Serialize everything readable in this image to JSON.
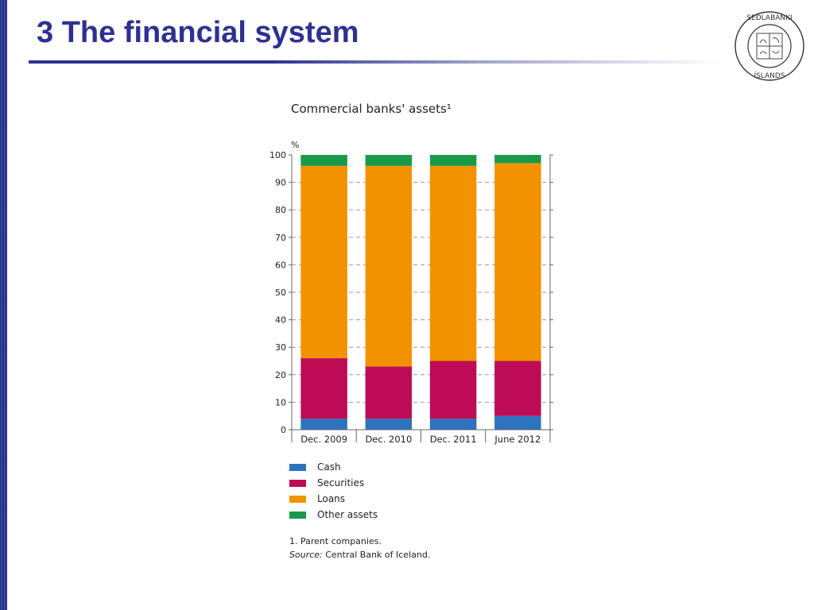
{
  "slide": {
    "title": "3 The financial system",
    "logo": {
      "name": "seal-icon",
      "text": "SEDLABANKI ISLANDS"
    }
  },
  "colors": {
    "title": "#2e3192",
    "cash": "#2d73c0",
    "securities": "#bd0c55",
    "loans": "#f39200",
    "other_assets": "#1a9a48"
  },
  "chart_data": {
    "type": "bar",
    "stacked": true,
    "title": "Commercial banks' assets¹",
    "ylabel": "%",
    "xlabel": "",
    "ylim": [
      0,
      100
    ],
    "yticks": [
      0,
      10,
      20,
      30,
      40,
      50,
      60,
      70,
      80,
      90,
      100
    ],
    "grid": "dashed-horizontal",
    "categories": [
      "Dec. 2009",
      "Dec. 2010",
      "Dec. 2011",
      "June 2012"
    ],
    "series": [
      {
        "name": "Cash",
        "color": "#2d73c0",
        "values": [
          4,
          4,
          4,
          5
        ]
      },
      {
        "name": "Securities",
        "color": "#bd0c55",
        "values": [
          22,
          19,
          21,
          20
        ]
      },
      {
        "name": "Loans",
        "color": "#f39200",
        "values": [
          70,
          73,
          71,
          72
        ]
      },
      {
        "name": "Other assets",
        "color": "#1a9a48",
        "values": [
          4,
          4,
          4,
          3
        ]
      }
    ],
    "legend_position": "bottom-left",
    "footnote": "1. Parent companies.",
    "source_label": "Source:",
    "source_text": " Central Bank of Iceland."
  }
}
